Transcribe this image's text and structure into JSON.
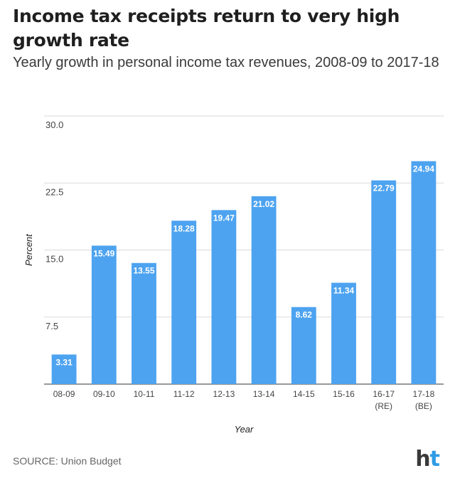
{
  "title": "Income tax receipts return to very high growth rate",
  "subtitle": "Yearly growth in personal income tax revenues, 2008-09 to 2017-18",
  "source": "SOURCE: Union Budget",
  "logo": {
    "h": "h",
    "t": "t"
  },
  "colors": {
    "bar": "#4da3f0",
    "bar_label": "#ffffff",
    "grid": "#d9d9d9",
    "axis": "#444444"
  },
  "chart_data": {
    "type": "bar",
    "categories": [
      "08-09",
      "09-10",
      "10-11",
      "11-12",
      "12-13",
      "13-14",
      "14-15",
      "15-16",
      "16-17\n(RE)",
      "17-18\n(BE)"
    ],
    "values": [
      3.31,
      15.49,
      13.55,
      18.28,
      19.47,
      21.02,
      8.62,
      11.34,
      22.79,
      24.94
    ],
    "value_labels": [
      "3.31",
      "15.49",
      "13.55",
      "18.28",
      "19.47",
      "21.02",
      "8.62",
      "11.34",
      "22.79",
      "24.94"
    ],
    "xlabel": "Year",
    "ylabel": "Percent",
    "ylim": [
      0,
      30
    ],
    "yticks": [
      "7.5",
      "15.0",
      "22.5",
      "30.0"
    ],
    "ytick_values": [
      7.5,
      15,
      22.5,
      30
    ],
    "grid": true
  }
}
